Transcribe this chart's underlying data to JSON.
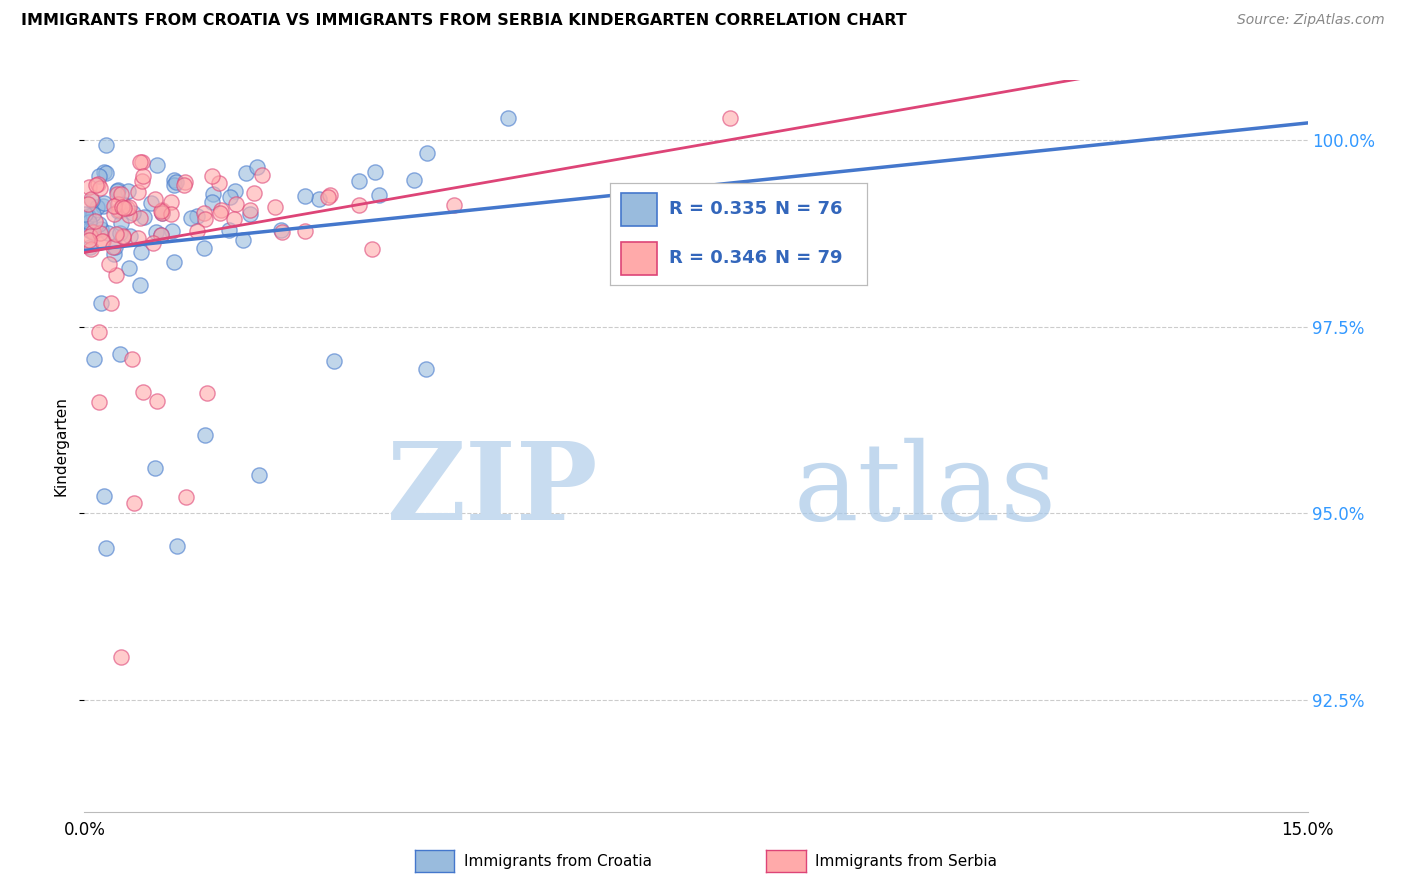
{
  "title": "IMMIGRANTS FROM CROATIA VS IMMIGRANTS FROM SERBIA KINDERGARTEN CORRELATION CHART",
  "source": "Source: ZipAtlas.com",
  "ylabel": "Kindergarten",
  "ytick_labels": [
    "100.0%",
    "97.5%",
    "95.0%",
    "92.5%"
  ],
  "ytick_values": [
    1.0,
    0.975,
    0.95,
    0.925
  ],
  "xlim": [
    0.0,
    0.15
  ],
  "ylim": [
    0.91,
    1.008
  ],
  "legend_R_croatia": "R = 0.335",
  "legend_N_croatia": "N = 76",
  "legend_R_serbia": "R = 0.346",
  "legend_N_serbia": "N = 79",
  "croatia_color": "#99BBDD",
  "serbia_color": "#FFAAAA",
  "line_croatia_color": "#4477CC",
  "line_serbia_color": "#DD4477",
  "watermark_zip": "ZIP",
  "watermark_atlas": "atlas"
}
